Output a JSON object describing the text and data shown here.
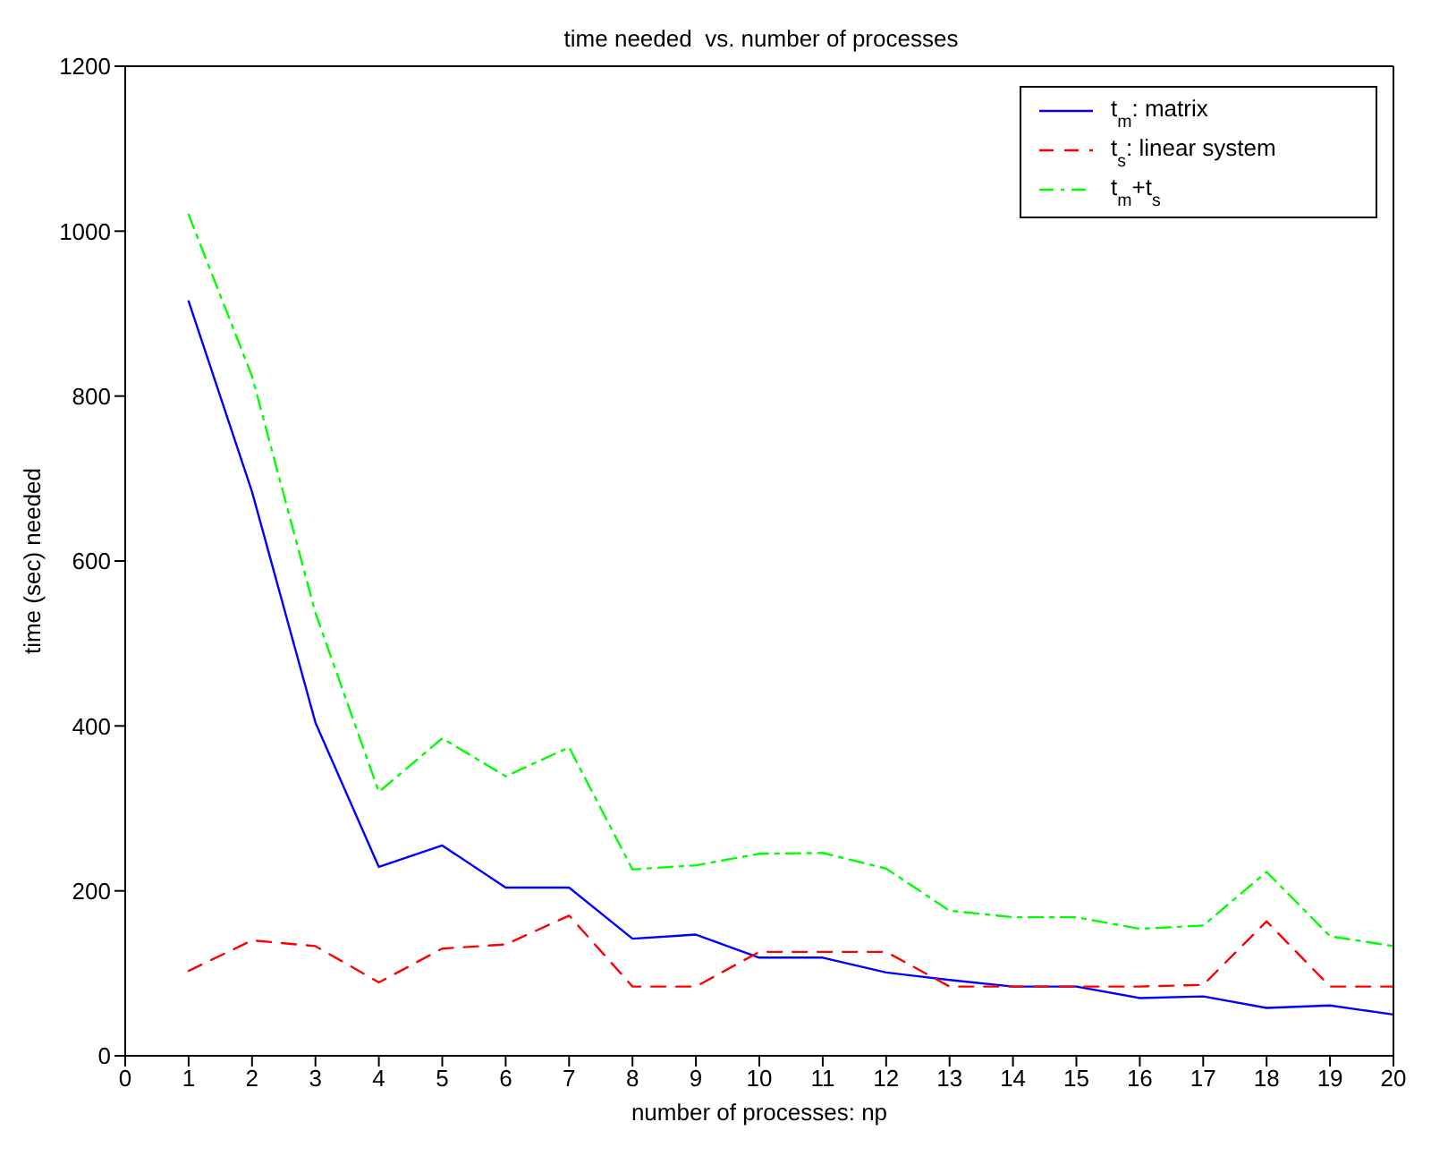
{
  "chart_data": {
    "type": "line",
    "title": "time needed  vs. number of processes",
    "xlabel": "number of processes: np",
    "ylabel": "time (sec) needed",
    "x": [
      1,
      2,
      3,
      4,
      5,
      6,
      7,
      8,
      9,
      10,
      11,
      12,
      13,
      14,
      15,
      16,
      17,
      18,
      19,
      20
    ],
    "series": [
      {
        "name": "t$_{m}$: matrix",
        "color": "#0000ff",
        "line_style": "solid",
        "values": [
          915,
          684,
          404,
          229,
          255,
          204,
          204,
          142,
          147,
          119,
          119,
          101,
          92,
          84,
          84,
          70,
          72,
          58,
          61,
          50
        ]
      },
      {
        "name": "t$_{s}$: linear system",
        "color": "#ff0000",
        "line_style": "dashed",
        "values": [
          103,
          140,
          133,
          89,
          130,
          135,
          170,
          84,
          84,
          126,
          126,
          126,
          84,
          84,
          84,
          84,
          86,
          163,
          84,
          84
        ]
      },
      {
        "name": "t$_{m}$+t$_{s}$",
        "color": "#00ff00",
        "line_style": "dashdot",
        "values": [
          1020,
          824,
          537,
          320,
          385,
          339,
          374,
          226,
          231,
          245,
          246,
          227,
          176,
          168,
          168,
          154,
          158,
          223,
          145,
          133
        ]
      }
    ],
    "xlim": [
      0,
      20
    ],
    "xticks": [
      0,
      1,
      2,
      3,
      4,
      5,
      6,
      7,
      8,
      9,
      10,
      11,
      12,
      13,
      14,
      15,
      16,
      17,
      18,
      19,
      20
    ],
    "ylim": [
      0,
      1200
    ],
    "yticks": [
      0,
      200,
      400,
      600,
      800,
      1000,
      1200
    ],
    "grid": false,
    "legend": "top right",
    "marker": "none"
  }
}
